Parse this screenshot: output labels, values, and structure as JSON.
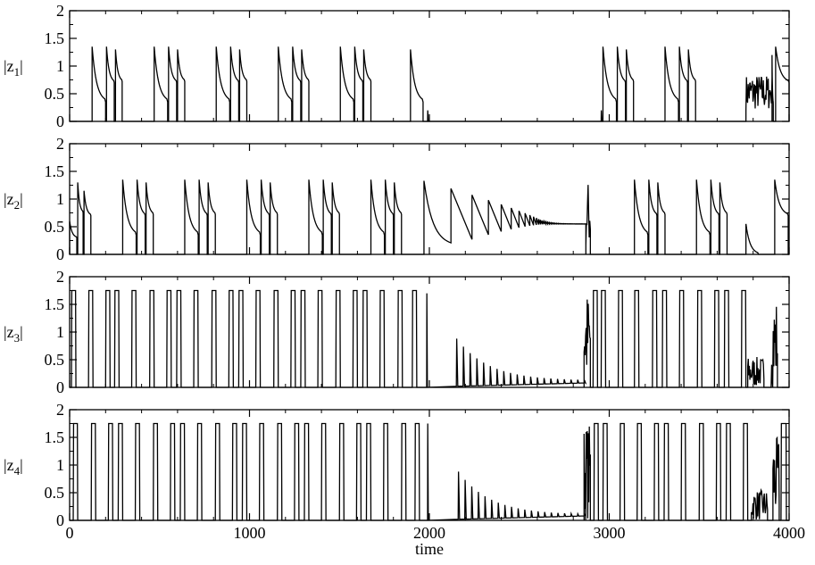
{
  "chart_data": [
    {
      "type": "line",
      "ylabel": "|z1|",
      "ylabel_main": "|z",
      "ylabel_sub": "1",
      "ylabel_end": "|",
      "xlim": [
        0,
        4000
      ],
      "ylim": [
        0,
        2
      ],
      "yticks": [
        0,
        0.5,
        1,
        1.5,
        2
      ],
      "ytick_labels": [
        "0",
        "0.5",
        "1",
        "1.5",
        "2"
      ],
      "grid": false,
      "shapes": [
        {
          "kind": "decay",
          "start": 125,
          "end": 200,
          "peak": 1.35,
          "endval": 0.35
        },
        {
          "kind": "decay",
          "start": 205,
          "end": 248,
          "peak": 1.35,
          "endval": 0.7
        },
        {
          "kind": "decay",
          "start": 255,
          "end": 292,
          "peak": 1.3,
          "endval": 0.72
        },
        {
          "kind": "decay",
          "start": 470,
          "end": 545,
          "peak": 1.35,
          "endval": 0.35
        },
        {
          "kind": "decay",
          "start": 550,
          "end": 595,
          "peak": 1.35,
          "endval": 0.7
        },
        {
          "kind": "decay",
          "start": 600,
          "end": 640,
          "peak": 1.3,
          "endval": 0.72
        },
        {
          "kind": "decay",
          "start": 815,
          "end": 890,
          "peak": 1.35,
          "endval": 0.35
        },
        {
          "kind": "decay",
          "start": 895,
          "end": 940,
          "peak": 1.35,
          "endval": 0.7
        },
        {
          "kind": "decay",
          "start": 945,
          "end": 985,
          "peak": 1.3,
          "endval": 0.72
        },
        {
          "kind": "decay",
          "start": 1160,
          "end": 1235,
          "peak": 1.35,
          "endval": 0.35
        },
        {
          "kind": "decay",
          "start": 1240,
          "end": 1285,
          "peak": 1.35,
          "endval": 0.7
        },
        {
          "kind": "decay",
          "start": 1290,
          "end": 1330,
          "peak": 1.3,
          "endval": 0.72
        },
        {
          "kind": "decay",
          "start": 1505,
          "end": 1580,
          "peak": 1.35,
          "endval": 0.35
        },
        {
          "kind": "decay",
          "start": 1585,
          "end": 1630,
          "peak": 1.35,
          "endval": 0.7
        },
        {
          "kind": "decay",
          "start": 1635,
          "end": 1675,
          "peak": 1.3,
          "endval": 0.72
        },
        {
          "kind": "decay",
          "start": 1895,
          "end": 1965,
          "peak": 1.3,
          "endval": 0.35
        },
        {
          "kind": "spike",
          "start": 1990,
          "peak": 0.2
        },
        {
          "kind": "spike",
          "start": 2955,
          "peak": 0.2
        },
        {
          "kind": "decay",
          "start": 2965,
          "end": 3040,
          "peak": 1.35,
          "endval": 0.35
        },
        {
          "kind": "decay",
          "start": 3045,
          "end": 3090,
          "peak": 1.35,
          "endval": 0.7
        },
        {
          "kind": "decay",
          "start": 3095,
          "end": 3135,
          "peak": 1.3,
          "endval": 0.72
        },
        {
          "kind": "decay",
          "start": 3310,
          "end": 3385,
          "peak": 1.35,
          "endval": 0.35
        },
        {
          "kind": "decay",
          "start": 3390,
          "end": 3435,
          "peak": 1.35,
          "endval": 0.7
        },
        {
          "kind": "decay",
          "start": 3440,
          "end": 3480,
          "peak": 1.3,
          "endval": 0.72
        },
        {
          "kind": "chaos",
          "start": 3760,
          "end": 3905,
          "min": 0.2,
          "max": 0.85
        },
        {
          "kind": "decay",
          "start": 3905,
          "end": 3912,
          "peak": 1.2,
          "endval": 0.3
        },
        {
          "kind": "decay",
          "start": 3925,
          "end": 4000,
          "peak": 1.35,
          "endval": 0.7
        }
      ]
    },
    {
      "type": "line",
      "ylabel": "|z2|",
      "ylabel_main": "|z",
      "ylabel_sub": "2",
      "ylabel_end": "|",
      "xlim": [
        0,
        4000
      ],
      "ylim": [
        0,
        2
      ],
      "yticks": [
        0,
        0.5,
        1,
        1.5,
        2
      ],
      "ytick_labels": [
        "0",
        "0.5",
        "1",
        "1.5",
        "2"
      ],
      "grid": false,
      "shapes": [
        {
          "kind": "decay",
          "start": 0,
          "end": 40,
          "peak": 0.6,
          "endval": 0.3
        },
        {
          "kind": "decay",
          "start": 45,
          "end": 75,
          "peak": 1.3,
          "endval": 0.75
        },
        {
          "kind": "decay",
          "start": 80,
          "end": 118,
          "peak": 1.15,
          "endval": 0.7
        },
        {
          "kind": "decay",
          "start": 295,
          "end": 370,
          "peak": 1.35,
          "endval": 0.35
        },
        {
          "kind": "decay",
          "start": 375,
          "end": 420,
          "peak": 1.35,
          "endval": 0.7
        },
        {
          "kind": "decay",
          "start": 425,
          "end": 465,
          "peak": 1.3,
          "endval": 0.72
        },
        {
          "kind": "decay",
          "start": 640,
          "end": 715,
          "peak": 1.35,
          "endval": 0.35
        },
        {
          "kind": "decay",
          "start": 720,
          "end": 765,
          "peak": 1.35,
          "endval": 0.7
        },
        {
          "kind": "decay",
          "start": 770,
          "end": 810,
          "peak": 1.3,
          "endval": 0.72
        },
        {
          "kind": "decay",
          "start": 985,
          "end": 1060,
          "peak": 1.35,
          "endval": 0.35
        },
        {
          "kind": "decay",
          "start": 1065,
          "end": 1110,
          "peak": 1.35,
          "endval": 0.7
        },
        {
          "kind": "decay",
          "start": 1115,
          "end": 1155,
          "peak": 1.3,
          "endval": 0.72
        },
        {
          "kind": "decay",
          "start": 1330,
          "end": 1405,
          "peak": 1.35,
          "endval": 0.35
        },
        {
          "kind": "decay",
          "start": 1410,
          "end": 1455,
          "peak": 1.35,
          "endval": 0.7
        },
        {
          "kind": "decay",
          "start": 1460,
          "end": 1500,
          "peak": 1.3,
          "endval": 0.72
        },
        {
          "kind": "decay",
          "start": 1675,
          "end": 1750,
          "peak": 1.35,
          "endval": 0.35
        },
        {
          "kind": "decay",
          "start": 1755,
          "end": 1800,
          "peak": 1.35,
          "endval": 0.7
        },
        {
          "kind": "decay",
          "start": 1805,
          "end": 1845,
          "peak": 1.3,
          "endval": 0.72
        },
        {
          "kind": "damped",
          "start": 1970,
          "end": 2870,
          "first_peak": 1.33,
          "first_min": 0.15,
          "settle": 0.55
        },
        {
          "kind": "chaos",
          "start": 2870,
          "end": 2895,
          "min": 0.1,
          "max": 1.35
        },
        {
          "kind": "decay",
          "start": 3140,
          "end": 3215,
          "peak": 1.35,
          "endval": 0.35
        },
        {
          "kind": "decay",
          "start": 3220,
          "end": 3265,
          "peak": 1.35,
          "endval": 0.7
        },
        {
          "kind": "decay",
          "start": 3270,
          "end": 3310,
          "peak": 1.3,
          "endval": 0.72
        },
        {
          "kind": "decay",
          "start": 3485,
          "end": 3560,
          "peak": 1.35,
          "endval": 0.35
        },
        {
          "kind": "decay",
          "start": 3565,
          "end": 3610,
          "peak": 1.35,
          "endval": 0.7
        },
        {
          "kind": "decay",
          "start": 3615,
          "end": 3655,
          "peak": 1.3,
          "endval": 0.72
        },
        {
          "kind": "decay",
          "start": 3760,
          "end": 3830,
          "peak": 0.55,
          "endval": 0.0
        },
        {
          "kind": "decay",
          "start": 3920,
          "end": 3995,
          "peak": 1.35,
          "endval": 0.7
        }
      ]
    },
    {
      "type": "line",
      "ylabel": "|z3|",
      "ylabel_main": "|z",
      "ylabel_sub": "3",
      "ylabel_end": "|",
      "xlim": [
        0,
        4000
      ],
      "ylim": [
        0,
        2
      ],
      "yticks": [
        0,
        0.5,
        1,
        1.5,
        2
      ],
      "ytick_labels": [
        "0",
        "0.5",
        "1",
        "1.5",
        "2"
      ],
      "grid": false,
      "shapes": [
        {
          "kind": "pulse",
          "start": 10,
          "end": 35,
          "height": 1.75
        },
        {
          "kind": "pulse",
          "start": 105,
          "end": 130,
          "height": 1.75
        },
        {
          "kind": "pulse",
          "start": 200,
          "end": 225,
          "height": 1.75
        },
        {
          "kind": "pulse",
          "start": 250,
          "end": 275,
          "height": 1.75
        },
        {
          "kind": "pulse",
          "start": 345,
          "end": 370,
          "height": 1.75
        },
        {
          "kind": "pulse",
          "start": 445,
          "end": 470,
          "height": 1.75
        },
        {
          "kind": "pulse",
          "start": 540,
          "end": 565,
          "height": 1.75
        },
        {
          "kind": "pulse",
          "start": 595,
          "end": 620,
          "height": 1.75
        },
        {
          "kind": "pulse",
          "start": 690,
          "end": 715,
          "height": 1.75
        },
        {
          "kind": "pulse",
          "start": 790,
          "end": 815,
          "height": 1.75
        },
        {
          "kind": "pulse",
          "start": 885,
          "end": 910,
          "height": 1.75
        },
        {
          "kind": "pulse",
          "start": 940,
          "end": 965,
          "height": 1.75
        },
        {
          "kind": "pulse",
          "start": 1035,
          "end": 1060,
          "height": 1.75
        },
        {
          "kind": "pulse",
          "start": 1135,
          "end": 1160,
          "height": 1.75
        },
        {
          "kind": "pulse",
          "start": 1230,
          "end": 1255,
          "height": 1.75
        },
        {
          "kind": "pulse",
          "start": 1285,
          "end": 1310,
          "height": 1.75
        },
        {
          "kind": "pulse",
          "start": 1380,
          "end": 1405,
          "height": 1.75
        },
        {
          "kind": "pulse",
          "start": 1480,
          "end": 1505,
          "height": 1.75
        },
        {
          "kind": "pulse",
          "start": 1575,
          "end": 1600,
          "height": 1.75
        },
        {
          "kind": "pulse",
          "start": 1630,
          "end": 1655,
          "height": 1.75
        },
        {
          "kind": "pulse",
          "start": 1725,
          "end": 1750,
          "height": 1.75
        },
        {
          "kind": "pulse",
          "start": 1825,
          "end": 1850,
          "height": 1.75
        },
        {
          "kind": "pulse",
          "start": 1905,
          "end": 1930,
          "height": 1.75
        },
        {
          "kind": "spike",
          "start": 1985,
          "peak": 1.7
        },
        {
          "kind": "spikes_decay",
          "start": 2150,
          "end": 2860,
          "first": 0.88,
          "last": 0.12,
          "n": 20
        },
        {
          "kind": "chaos",
          "start": 2860,
          "end": 2895,
          "min": 0.0,
          "max": 1.75
        },
        {
          "kind": "pulse",
          "start": 2910,
          "end": 2935,
          "height": 1.75
        },
        {
          "kind": "pulse",
          "start": 2955,
          "end": 2980,
          "height": 1.75
        },
        {
          "kind": "pulse",
          "start": 3050,
          "end": 3075,
          "height": 1.75
        },
        {
          "kind": "pulse",
          "start": 3140,
          "end": 3165,
          "height": 1.75
        },
        {
          "kind": "pulse",
          "start": 3240,
          "end": 3265,
          "height": 1.75
        },
        {
          "kind": "pulse",
          "start": 3295,
          "end": 3320,
          "height": 1.75
        },
        {
          "kind": "pulse",
          "start": 3390,
          "end": 3415,
          "height": 1.75
        },
        {
          "kind": "pulse",
          "start": 3490,
          "end": 3515,
          "height": 1.75
        },
        {
          "kind": "pulse",
          "start": 3585,
          "end": 3610,
          "height": 1.75
        },
        {
          "kind": "pulse",
          "start": 3640,
          "end": 3665,
          "height": 1.75
        },
        {
          "kind": "pulse",
          "start": 3735,
          "end": 3760,
          "height": 1.75
        },
        {
          "kind": "chaos",
          "start": 3770,
          "end": 3860,
          "min": 0.0,
          "max": 0.55
        },
        {
          "kind": "chaos",
          "start": 3900,
          "end": 3935,
          "min": 0.0,
          "max": 1.65
        }
      ]
    },
    {
      "type": "line",
      "ylabel": "|z4|",
      "ylabel_main": "|z",
      "ylabel_sub": "4",
      "ylabel_end": "|",
      "xlabel": "time",
      "xlim": [
        0,
        4000
      ],
      "ylim": [
        0,
        2
      ],
      "xticks": [
        0,
        1000,
        2000,
        3000,
        4000
      ],
      "xtick_labels": [
        "0",
        "1000",
        "2000",
        "3000",
        "4000"
      ],
      "yticks": [
        0,
        0.5,
        1,
        1.5,
        2
      ],
      "ytick_labels": [
        "0",
        "0.5",
        "1",
        "1.5",
        "2"
      ],
      "grid": false,
      "shapes": [
        {
          "kind": "pulse",
          "start": 20,
          "end": 45,
          "height": 1.75
        },
        {
          "kind": "pulse",
          "start": 120,
          "end": 145,
          "height": 1.75
        },
        {
          "kind": "pulse",
          "start": 215,
          "end": 240,
          "height": 1.75
        },
        {
          "kind": "pulse",
          "start": 270,
          "end": 295,
          "height": 1.75
        },
        {
          "kind": "pulse",
          "start": 365,
          "end": 390,
          "height": 1.75
        },
        {
          "kind": "pulse",
          "start": 465,
          "end": 490,
          "height": 1.75
        },
        {
          "kind": "pulse",
          "start": 560,
          "end": 585,
          "height": 1.75
        },
        {
          "kind": "pulse",
          "start": 615,
          "end": 640,
          "height": 1.75
        },
        {
          "kind": "pulse",
          "start": 710,
          "end": 735,
          "height": 1.75
        },
        {
          "kind": "pulse",
          "start": 810,
          "end": 835,
          "height": 1.75
        },
        {
          "kind": "pulse",
          "start": 905,
          "end": 930,
          "height": 1.75
        },
        {
          "kind": "pulse",
          "start": 960,
          "end": 985,
          "height": 1.75
        },
        {
          "kind": "pulse",
          "start": 1055,
          "end": 1080,
          "height": 1.75
        },
        {
          "kind": "pulse",
          "start": 1155,
          "end": 1180,
          "height": 1.75
        },
        {
          "kind": "pulse",
          "start": 1250,
          "end": 1275,
          "height": 1.75
        },
        {
          "kind": "pulse",
          "start": 1305,
          "end": 1330,
          "height": 1.75
        },
        {
          "kind": "pulse",
          "start": 1400,
          "end": 1425,
          "height": 1.75
        },
        {
          "kind": "pulse",
          "start": 1500,
          "end": 1525,
          "height": 1.75
        },
        {
          "kind": "pulse",
          "start": 1595,
          "end": 1620,
          "height": 1.75
        },
        {
          "kind": "pulse",
          "start": 1650,
          "end": 1675,
          "height": 1.75
        },
        {
          "kind": "pulse",
          "start": 1745,
          "end": 1770,
          "height": 1.75
        },
        {
          "kind": "pulse",
          "start": 1845,
          "end": 1870,
          "height": 1.75
        },
        {
          "kind": "pulse",
          "start": 1920,
          "end": 1945,
          "height": 1.75
        },
        {
          "kind": "spike",
          "start": 1990,
          "peak": 1.75
        },
        {
          "kind": "spikes_decay",
          "start": 2160,
          "end": 2860,
          "first": 0.88,
          "last": 0.1,
          "n": 20
        },
        {
          "kind": "chaos",
          "start": 2860,
          "end": 2895,
          "min": 0.0,
          "max": 1.75
        },
        {
          "kind": "pulse",
          "start": 2915,
          "end": 2940,
          "height": 1.75
        },
        {
          "kind": "pulse",
          "start": 2965,
          "end": 2990,
          "height": 1.75
        },
        {
          "kind": "pulse",
          "start": 3060,
          "end": 3085,
          "height": 1.75
        },
        {
          "kind": "pulse",
          "start": 3155,
          "end": 3180,
          "height": 1.75
        },
        {
          "kind": "pulse",
          "start": 3250,
          "end": 3275,
          "height": 1.75
        },
        {
          "kind": "pulse",
          "start": 3305,
          "end": 3330,
          "height": 1.75
        },
        {
          "kind": "pulse",
          "start": 3400,
          "end": 3425,
          "height": 1.75
        },
        {
          "kind": "pulse",
          "start": 3500,
          "end": 3525,
          "height": 1.75
        },
        {
          "kind": "pulse",
          "start": 3595,
          "end": 3620,
          "height": 1.75
        },
        {
          "kind": "pulse",
          "start": 3650,
          "end": 3675,
          "height": 1.75
        },
        {
          "kind": "pulse",
          "start": 3745,
          "end": 3770,
          "height": 1.75
        },
        {
          "kind": "chaos",
          "start": 3790,
          "end": 3880,
          "min": 0.0,
          "max": 0.55
        },
        {
          "kind": "chaos",
          "start": 3910,
          "end": 3945,
          "min": 0.0,
          "max": 1.5
        },
        {
          "kind": "pulse",
          "start": 3955,
          "end": 3985,
          "height": 1.75
        }
      ]
    }
  ]
}
